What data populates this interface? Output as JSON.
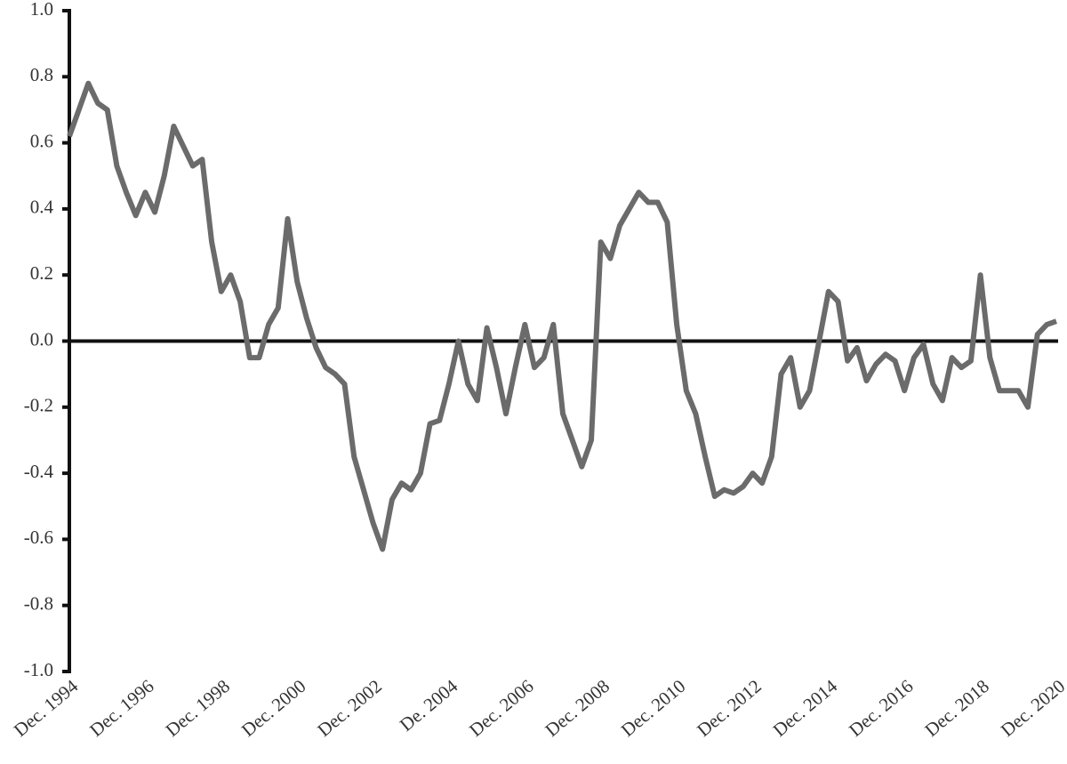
{
  "chart_data": {
    "type": "line",
    "categories": [
      "Dec. 1994",
      null,
      null,
      null,
      null,
      null,
      null,
      null,
      "Dec. 1996",
      null,
      null,
      null,
      null,
      null,
      null,
      null,
      "Dec. 1998",
      null,
      null,
      null,
      null,
      null,
      null,
      null,
      "Dec. 2000",
      null,
      null,
      null,
      null,
      null,
      null,
      null,
      "Dec. 2002",
      null,
      null,
      null,
      null,
      null,
      null,
      null,
      "De. 2004",
      null,
      null,
      null,
      null,
      null,
      null,
      null,
      "Dec. 2006",
      null,
      null,
      null,
      null,
      null,
      null,
      null,
      "Dec. 2008",
      null,
      null,
      null,
      null,
      null,
      null,
      null,
      "Dec. 2010",
      null,
      null,
      null,
      null,
      null,
      null,
      null,
      "Dec. 2012",
      null,
      null,
      null,
      null,
      null,
      null,
      null,
      "Dec. 2014",
      null,
      null,
      null,
      null,
      null,
      null,
      null,
      "Dec. 2016",
      null,
      null,
      null,
      null,
      null,
      null,
      null,
      "Dec. 2018",
      null,
      null,
      null,
      null,
      null,
      null,
      null,
      "Dec. 2020"
    ],
    "values": [
      0.62,
      0.7,
      0.78,
      0.72,
      0.7,
      0.53,
      0.45,
      0.38,
      0.45,
      0.39,
      0.5,
      0.65,
      0.59,
      0.53,
      0.55,
      0.3,
      0.15,
      0.2,
      0.12,
      -0.05,
      -0.05,
      0.05,
      0.1,
      0.37,
      0.18,
      0.07,
      -0.02,
      -0.08,
      -0.1,
      -0.13,
      -0.35,
      -0.45,
      -0.55,
      -0.63,
      -0.48,
      -0.43,
      -0.45,
      -0.4,
      -0.25,
      -0.24,
      -0.13,
      0.0,
      -0.13,
      -0.18,
      0.04,
      -0.08,
      -0.22,
      -0.08,
      0.05,
      -0.08,
      -0.05,
      0.05,
      -0.22,
      -0.3,
      -0.38,
      -0.3,
      0.3,
      0.25,
      0.35,
      0.4,
      0.45,
      0.42,
      0.42,
      0.36,
      0.05,
      -0.15,
      -0.22,
      -0.35,
      -0.47,
      -0.45,
      -0.46,
      -0.44,
      -0.4,
      -0.43,
      -0.35,
      -0.1,
      -0.05,
      -0.2,
      -0.15,
      0.0,
      0.15,
      0.12,
      -0.06,
      -0.02,
      -0.12,
      -0.07,
      -0.04,
      -0.06,
      -0.15,
      -0.05,
      -0.01,
      -0.13,
      -0.18,
      -0.05,
      -0.08,
      -0.06,
      0.2,
      -0.05,
      -0.15,
      -0.15,
      -0.15,
      -0.2,
      0.02,
      0.05,
      0.06
    ],
    "color": "#6b6b6b",
    "ylim": [
      -1,
      1
    ],
    "yticks": [
      {
        "value": -1,
        "label": "-1.0"
      },
      -0.8,
      -0.6,
      -0.4,
      -0.2,
      {
        "value": 0,
        "label": "0.0"
      },
      0.2,
      0.4,
      0.6,
      0.8,
      {
        "value": 1,
        "label": "1.0"
      }
    ]
  }
}
